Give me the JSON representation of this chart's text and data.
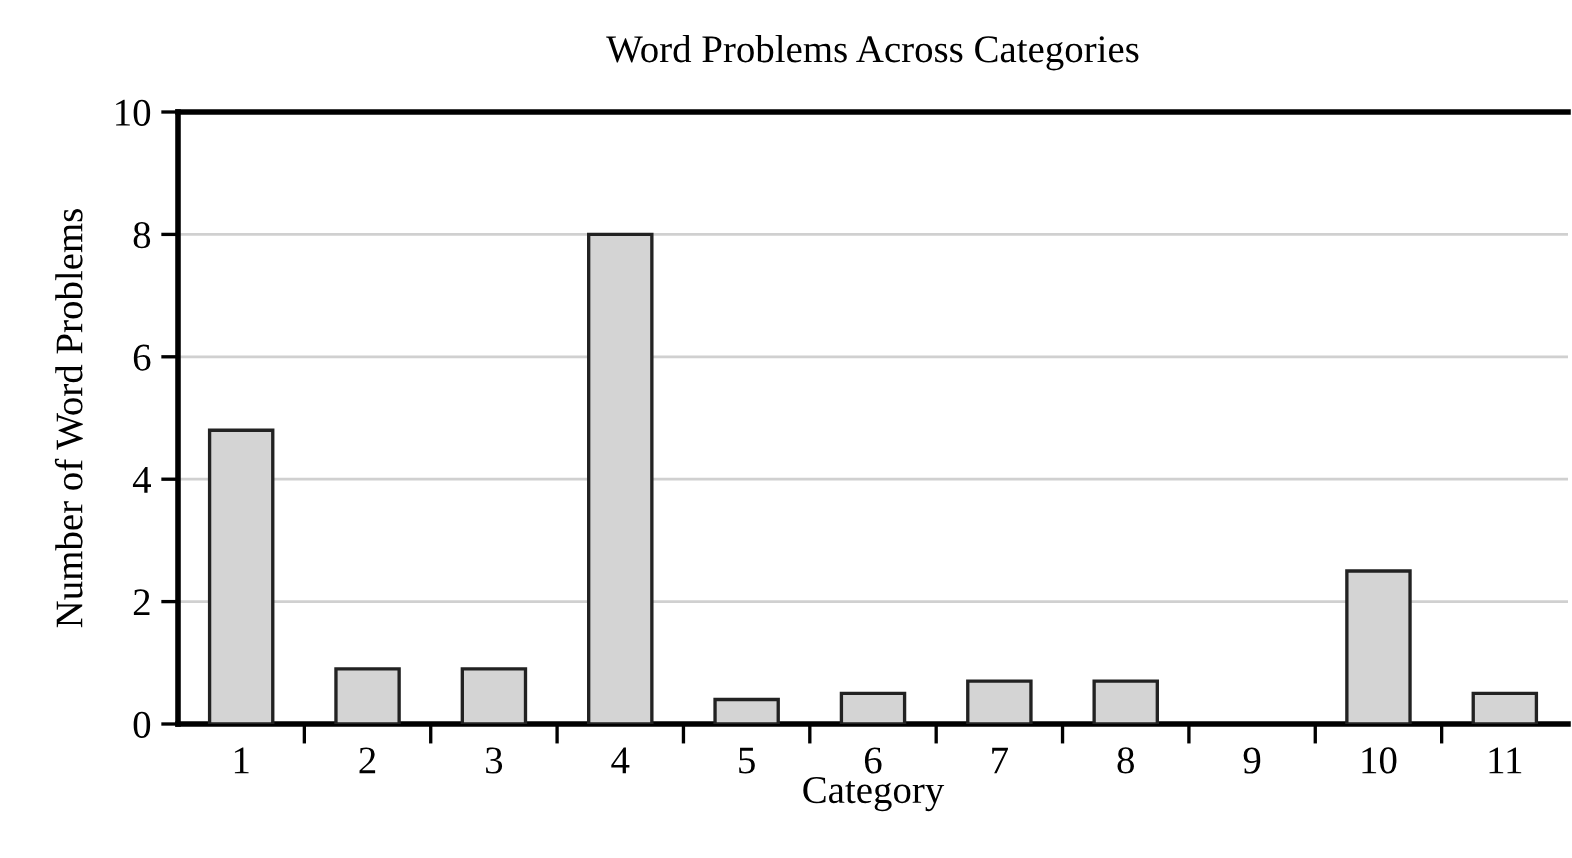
{
  "chart_data": {
    "type": "bar",
    "title": "Word Problems Across Categories",
    "xlabel": "Category",
    "ylabel": "Number of Word Problems",
    "categories": [
      "1",
      "2",
      "3",
      "4",
      "5",
      "6",
      "7",
      "8",
      "9",
      "10",
      "11"
    ],
    "values": [
      4.8,
      0.9,
      0.9,
      8.0,
      0.4,
      0.5,
      0.7,
      0.7,
      0,
      2.5,
      0.5
    ],
    "color": "#d4d4d4",
    "ylim": [
      0,
      10
    ],
    "yticks": [
      0,
      2,
      4,
      6,
      8,
      10
    ],
    "grid": "y"
  }
}
